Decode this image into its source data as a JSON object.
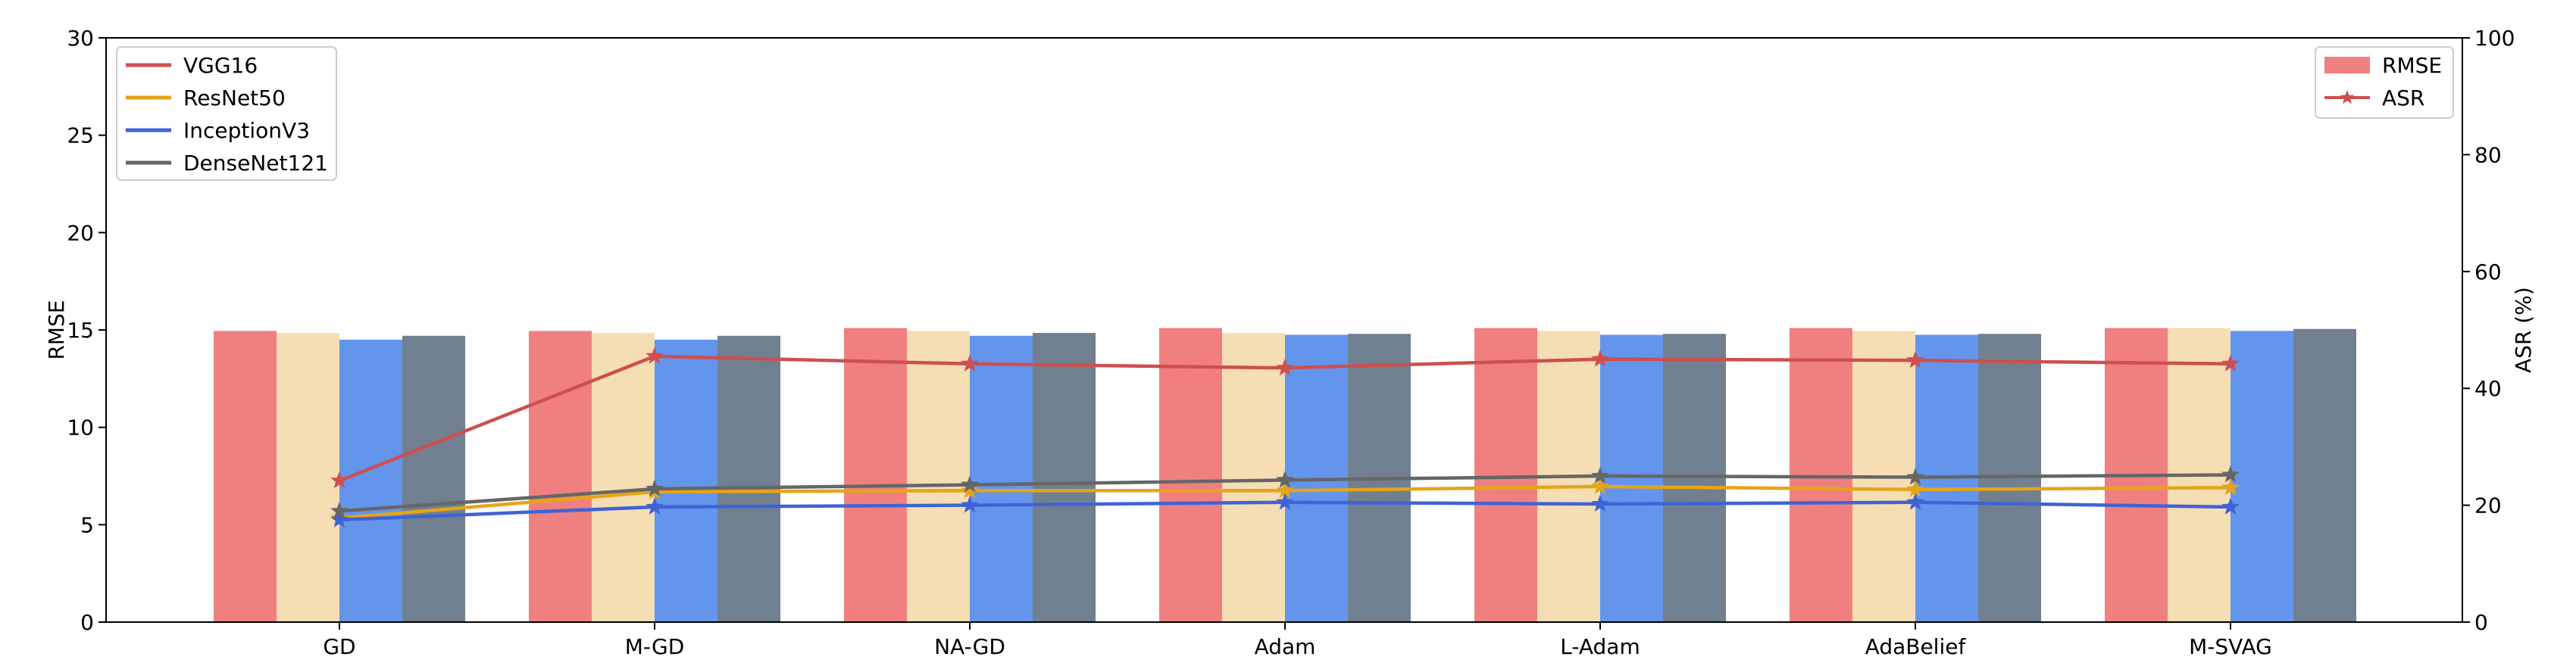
{
  "chart_data": {
    "type": "bar",
    "categories": [
      "GD",
      "M-GD",
      "NA-GD",
      "Adam",
      "L-Adam",
      "AdaBelief",
      "M-SVAG"
    ],
    "left_axis": {
      "label": "RMSE",
      "ylim": [
        0,
        30
      ],
      "ticks": [
        0,
        5,
        10,
        15,
        20,
        25,
        30
      ]
    },
    "right_axis": {
      "label": "ASR (%)",
      "ylim": [
        0,
        100
      ],
      "ticks": [
        0,
        20,
        40,
        60,
        80,
        100
      ]
    },
    "bar_series": [
      {
        "name": "VGG16",
        "color": "#f08080",
        "values": [
          14.95,
          14.95,
          15.1,
          15.1,
          15.1,
          15.1,
          15.1
        ]
      },
      {
        "name": "ResNet50",
        "color": "#f5deb3",
        "values": [
          14.85,
          14.85,
          14.95,
          14.85,
          14.95,
          14.95,
          15.1
        ]
      },
      {
        "name": "InceptionV3",
        "color": "#6495ed",
        "values": [
          14.5,
          14.5,
          14.7,
          14.75,
          14.75,
          14.75,
          14.95
        ]
      },
      {
        "name": "DenseNet121",
        "color": "#708090",
        "values": [
          14.7,
          14.7,
          14.85,
          14.8,
          14.8,
          14.8,
          15.05
        ]
      }
    ],
    "asr_series": [
      {
        "name": "VGG16",
        "color": "#cd4f4f",
        "values": [
          24.2,
          45.5,
          44.2,
          43.5,
          45.0,
          44.8,
          44.2
        ]
      },
      {
        "name": "ResNet50",
        "color": "#e6a417",
        "values": [
          17.8,
          22.3,
          22.5,
          22.5,
          23.2,
          22.7,
          23.0
        ]
      },
      {
        "name": "InceptionV3",
        "color": "#3f63d6",
        "values": [
          17.5,
          19.7,
          20.0,
          20.5,
          20.2,
          20.5,
          19.7
        ]
      },
      {
        "name": "DenseNet121",
        "color": "#666666",
        "values": [
          19.0,
          22.8,
          23.5,
          24.3,
          25.0,
          24.8,
          25.2
        ]
      }
    ],
    "legends": {
      "models": {
        "placement": "top-left",
        "entries": [
          "VGG16",
          "ResNet50",
          "InceptionV3",
          "DenseNet121"
        ]
      },
      "metrics": {
        "placement": "top-right",
        "entries": [
          {
            "label": "RMSE",
            "color": "#f08080",
            "kind": "patch"
          },
          {
            "label": "ASR",
            "color": "#cd4f4f",
            "kind": "line-star"
          }
        ]
      }
    },
    "grid": false
  }
}
